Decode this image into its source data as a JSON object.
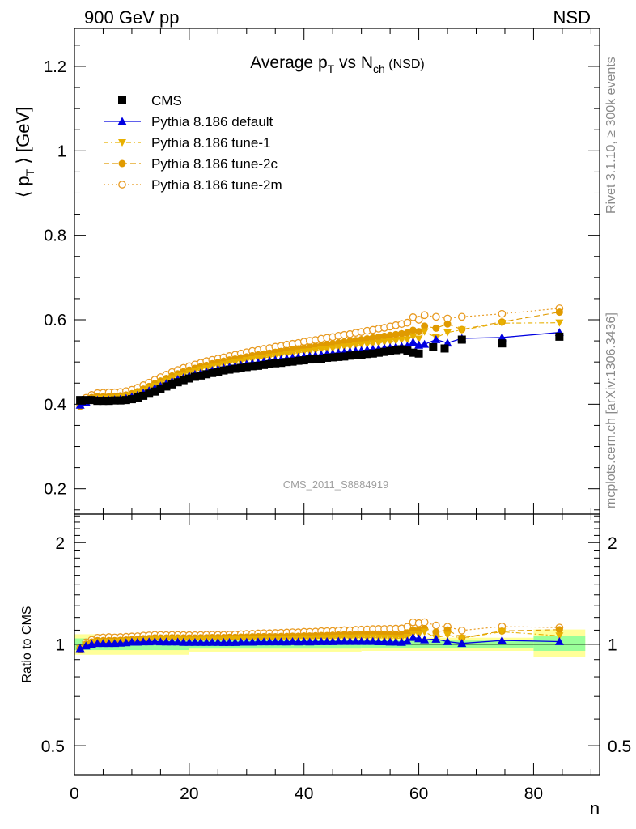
{
  "header": {
    "energy_label": "900 GeV pp",
    "process_label": "NSD"
  },
  "side_labels": {
    "rivet": "Rivet 3.1.10, ≥ 300k events",
    "source": "mcplots.cern.ch [arXiv:1306.3436]"
  },
  "watermark": "CMS_2011_S8884919",
  "colors": {
    "cms": "#000000",
    "default": "#0000e0",
    "tune1": "#e8b000",
    "tune2c": "#e09a00",
    "tune2m": "#e89a20",
    "band_yellow": "#ffff99",
    "band_green": "#99ff99"
  },
  "chart_data": [
    {
      "type": "scatter",
      "panel": "main",
      "title_parts": {
        "pre": "Average p",
        "sub1": "T",
        "mid": " vs N",
        "sub2": "ch",
        "post": " (NSD)"
      },
      "ylabel_parts": {
        "pre": "⟨ p",
        "sub": "T",
        "post": " ⟩ [GeV]"
      },
      "ylim": [
        0.14,
        1.29
      ],
      "xlim": [
        0,
        91.5
      ],
      "y_ticks": [
        0.2,
        0.4,
        0.6,
        0.8,
        1,
        1.2
      ],
      "y_tick_labels": [
        "0.2",
        "0.4",
        "0.6",
        "0.8",
        "1",
        "1.2"
      ],
      "legend_position": "top-left",
      "legend": [
        {
          "key": "cms",
          "label": "CMS"
        },
        {
          "key": "default",
          "label": "Pythia 8.186 default"
        },
        {
          "key": "tune1",
          "label": "Pythia 8.186 tune-1"
        },
        {
          "key": "tune2c",
          "label": "Pythia 8.186 tune-2c"
        },
        {
          "key": "tune2m",
          "label": "Pythia 8.186 tune-2m"
        }
      ],
      "series": [
        {
          "key": "cms",
          "name": "CMS",
          "x": [
            1,
            2,
            3,
            4,
            5,
            6,
            7,
            8,
            9,
            10,
            11,
            12,
            13,
            14,
            15,
            16,
            17,
            18,
            19,
            20,
            21,
            22,
            23,
            24,
            25,
            26,
            27,
            28,
            29,
            30,
            31,
            32,
            33,
            34,
            35,
            36,
            37,
            38,
            39,
            40,
            41,
            42,
            43,
            44,
            45,
            46,
            47,
            48,
            49,
            50,
            51,
            52,
            53,
            54,
            55,
            56,
            57,
            58,
            59,
            60,
            62.5,
            64.5,
            67.5,
            74.5,
            84.5
          ],
          "y": [
            0.41,
            0.41,
            0.41,
            0.408,
            0.408,
            0.408,
            0.409,
            0.409,
            0.41,
            0.412,
            0.416,
            0.42,
            0.425,
            0.43,
            0.436,
            0.442,
            0.447,
            0.452,
            0.457,
            0.461,
            0.465,
            0.468,
            0.471,
            0.474,
            0.477,
            0.48,
            0.482,
            0.484,
            0.486,
            0.488,
            0.49,
            0.491,
            0.493,
            0.495,
            0.497,
            0.498,
            0.5,
            0.501,
            0.503,
            0.504,
            0.506,
            0.507,
            0.508,
            0.51,
            0.511,
            0.512,
            0.513,
            0.515,
            0.516,
            0.517,
            0.519,
            0.52,
            0.522,
            0.524,
            0.526,
            0.528,
            0.53,
            0.527,
            0.522,
            0.52,
            0.535,
            0.532,
            0.553,
            0.544,
            0.56
          ]
        },
        {
          "key": "default",
          "name": "Pythia 8.186 default",
          "x": [
            1,
            2,
            3,
            4,
            5,
            6,
            7,
            8,
            9,
            10,
            11,
            12,
            13,
            14,
            15,
            16,
            17,
            18,
            19,
            20,
            21,
            22,
            23,
            24,
            25,
            26,
            27,
            28,
            29,
            30,
            31,
            32,
            33,
            34,
            35,
            36,
            37,
            38,
            39,
            40,
            41,
            42,
            43,
            44,
            45,
            46,
            47,
            48,
            49,
            50,
            51,
            52,
            53,
            54,
            55,
            56,
            57,
            58,
            59,
            60,
            61,
            63,
            65,
            67.5,
            74.5,
            84.5
          ],
          "y": [
            0.398,
            0.405,
            0.41,
            0.41,
            0.41,
            0.41,
            0.411,
            0.412,
            0.414,
            0.418,
            0.422,
            0.427,
            0.432,
            0.438,
            0.443,
            0.449,
            0.454,
            0.459,
            0.463,
            0.467,
            0.471,
            0.474,
            0.477,
            0.48,
            0.483,
            0.486,
            0.488,
            0.49,
            0.493,
            0.495,
            0.497,
            0.499,
            0.501,
            0.503,
            0.505,
            0.506,
            0.508,
            0.51,
            0.511,
            0.513,
            0.514,
            0.516,
            0.517,
            0.519,
            0.52,
            0.522,
            0.523,
            0.525,
            0.526,
            0.527,
            0.529,
            0.53,
            0.531,
            0.533,
            0.534,
            0.536,
            0.537,
            0.538,
            0.547,
            0.54,
            0.542,
            0.553,
            0.545,
            0.556,
            0.558,
            0.57
          ]
        },
        {
          "key": "tune1",
          "name": "Pythia 8.186 tune-1",
          "x": [
            1,
            2,
            3,
            4,
            5,
            6,
            7,
            8,
            9,
            10,
            11,
            12,
            13,
            14,
            15,
            16,
            17,
            18,
            19,
            20,
            21,
            22,
            23,
            24,
            25,
            26,
            27,
            28,
            29,
            30,
            31,
            32,
            33,
            34,
            35,
            36,
            37,
            38,
            39,
            40,
            41,
            42,
            43,
            44,
            45,
            46,
            47,
            48,
            49,
            50,
            51,
            52,
            53,
            54,
            55,
            56,
            57,
            58,
            59,
            60,
            61,
            63,
            65,
            67.5,
            74.5,
            84.5
          ],
          "y": [
            0.398,
            0.408,
            0.413,
            0.414,
            0.414,
            0.414,
            0.415,
            0.416,
            0.418,
            0.421,
            0.426,
            0.431,
            0.437,
            0.443,
            0.449,
            0.455,
            0.461,
            0.466,
            0.47,
            0.474,
            0.478,
            0.482,
            0.485,
            0.488,
            0.491,
            0.494,
            0.497,
            0.499,
            0.501,
            0.504,
            0.506,
            0.508,
            0.51,
            0.512,
            0.514,
            0.516,
            0.518,
            0.52,
            0.522,
            0.524,
            0.525,
            0.527,
            0.529,
            0.531,
            0.532,
            0.534,
            0.536,
            0.537,
            0.539,
            0.541,
            0.542,
            0.544,
            0.545,
            0.547,
            0.549,
            0.55,
            0.552,
            0.553,
            0.56,
            0.555,
            0.572,
            0.558,
            0.57,
            0.576,
            0.592,
            0.593
          ]
        },
        {
          "key": "tune2c",
          "name": "Pythia 8.186 tune-2c",
          "x": [
            1,
            2,
            3,
            4,
            5,
            6,
            7,
            8,
            9,
            10,
            11,
            12,
            13,
            14,
            15,
            16,
            17,
            18,
            19,
            20,
            21,
            22,
            23,
            24,
            25,
            26,
            27,
            28,
            29,
            30,
            31,
            32,
            33,
            34,
            35,
            36,
            37,
            38,
            39,
            40,
            41,
            42,
            43,
            44,
            45,
            46,
            47,
            48,
            49,
            50,
            51,
            52,
            53,
            54,
            55,
            56,
            57,
            58,
            59,
            60,
            61,
            63,
            65,
            67.5,
            74.5,
            84.5
          ],
          "y": [
            0.395,
            0.41,
            0.416,
            0.418,
            0.418,
            0.418,
            0.419,
            0.42,
            0.422,
            0.425,
            0.43,
            0.436,
            0.442,
            0.449,
            0.455,
            0.461,
            0.467,
            0.472,
            0.477,
            0.481,
            0.485,
            0.489,
            0.492,
            0.496,
            0.499,
            0.502,
            0.505,
            0.507,
            0.51,
            0.512,
            0.515,
            0.517,
            0.519,
            0.521,
            0.523,
            0.525,
            0.527,
            0.529,
            0.531,
            0.533,
            0.535,
            0.537,
            0.539,
            0.541,
            0.543,
            0.545,
            0.547,
            0.549,
            0.551,
            0.553,
            0.555,
            0.557,
            0.559,
            0.561,
            0.563,
            0.565,
            0.567,
            0.569,
            0.575,
            0.572,
            0.585,
            0.58,
            0.59,
            0.577,
            0.595,
            0.618
          ]
        },
        {
          "key": "tune2m",
          "name": "Pythia 8.186 tune-2m",
          "x": [
            1,
            2,
            3,
            4,
            5,
            6,
            7,
            8,
            9,
            10,
            11,
            12,
            13,
            14,
            15,
            16,
            17,
            18,
            19,
            20,
            21,
            22,
            23,
            24,
            25,
            26,
            27,
            28,
            29,
            30,
            31,
            32,
            33,
            34,
            35,
            36,
            37,
            38,
            39,
            40,
            41,
            42,
            43,
            44,
            45,
            46,
            47,
            48,
            49,
            50,
            51,
            52,
            53,
            54,
            55,
            56,
            57,
            58,
            59,
            60,
            61,
            63,
            65,
            67.5,
            74.5,
            84.5
          ],
          "y": [
            0.398,
            0.415,
            0.422,
            0.426,
            0.427,
            0.428,
            0.428,
            0.429,
            0.431,
            0.434,
            0.439,
            0.445,
            0.451,
            0.458,
            0.464,
            0.47,
            0.476,
            0.481,
            0.486,
            0.49,
            0.494,
            0.498,
            0.502,
            0.505,
            0.508,
            0.511,
            0.514,
            0.517,
            0.52,
            0.523,
            0.526,
            0.528,
            0.531,
            0.533,
            0.536,
            0.538,
            0.541,
            0.543,
            0.545,
            0.548,
            0.55,
            0.552,
            0.555,
            0.557,
            0.559,
            0.562,
            0.564,
            0.566,
            0.569,
            0.571,
            0.574,
            0.576,
            0.579,
            0.581,
            0.584,
            0.587,
            0.59,
            0.593,
            0.606,
            0.6,
            0.611,
            0.607,
            0.603,
            0.607,
            0.614,
            0.627
          ]
        }
      ]
    },
    {
      "type": "scatter",
      "panel": "ratio",
      "ylabel": "Ratio to CMS",
      "xlabel": "n",
      "xlim": [
        0,
        91.5
      ],
      "ylim": [
        0.41,
        2.43
      ],
      "y_scale": "log",
      "x_ticks": [
        0,
        20,
        40,
        60,
        80
      ],
      "x_tick_labels": [
        "0",
        "20",
        "40",
        "60",
        "80"
      ],
      "y_ticks": [
        0.5,
        1,
        2
      ],
      "y_tick_labels": [
        "0.5",
        "1",
        "2"
      ],
      "reference_line": 1,
      "bands": [
        {
          "x0": 0,
          "x1": 20,
          "yellow": [
            0.93,
            1.07
          ],
          "green": [
            0.96,
            1.04
          ]
        },
        {
          "x0": 20,
          "x1": 50,
          "yellow": [
            0.95,
            1.05
          ],
          "green": [
            0.97,
            1.03
          ]
        },
        {
          "x0": 50,
          "x1": 80,
          "yellow": [
            0.955,
            1.045
          ],
          "green": [
            0.975,
            1.025
          ]
        },
        {
          "x0": 80,
          "x1": 89,
          "yellow": [
            0.915,
            1.105
          ],
          "green": [
            0.955,
            1.055
          ]
        }
      ]
    }
  ]
}
